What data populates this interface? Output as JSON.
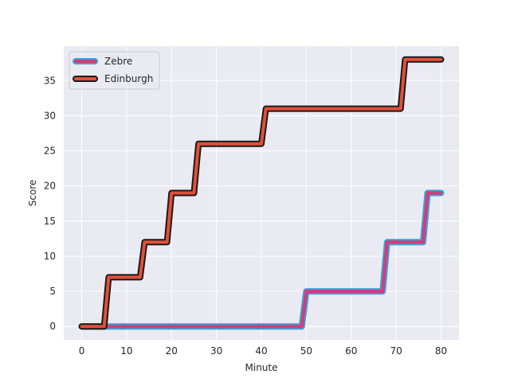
{
  "chart_data": {
    "type": "line",
    "xlabel": "Minute",
    "ylabel": "Score",
    "xlim": [
      -4,
      84
    ],
    "ylim": [
      -1.9,
      39.9
    ],
    "xticks": [
      0,
      10,
      20,
      30,
      40,
      50,
      60,
      70,
      80
    ],
    "yticks": [
      0,
      5,
      10,
      15,
      20,
      25,
      30,
      35
    ],
    "grid": true,
    "legend_position": "top-left",
    "series": [
      {
        "name": "Zebre",
        "line_color": "#d63a7a",
        "edge_color": "#3a9fd6",
        "points": [
          [
            0,
            0
          ],
          [
            49,
            0
          ],
          [
            50,
            5
          ],
          [
            67,
            5
          ],
          [
            68,
            12
          ],
          [
            76,
            12
          ],
          [
            77,
            19
          ],
          [
            80,
            19
          ]
        ]
      },
      {
        "name": "Edinburgh",
        "line_color": "#e0503a",
        "edge_color": "#1a1a1a",
        "points": [
          [
            0,
            0
          ],
          [
            5,
            0
          ],
          [
            6,
            7
          ],
          [
            13,
            7
          ],
          [
            14,
            12
          ],
          [
            19,
            12
          ],
          [
            20,
            19
          ],
          [
            25,
            19
          ],
          [
            26,
            26
          ],
          [
            40,
            26
          ],
          [
            41,
            31
          ],
          [
            71,
            31
          ],
          [
            72,
            38
          ],
          [
            80,
            38
          ]
        ]
      }
    ]
  }
}
